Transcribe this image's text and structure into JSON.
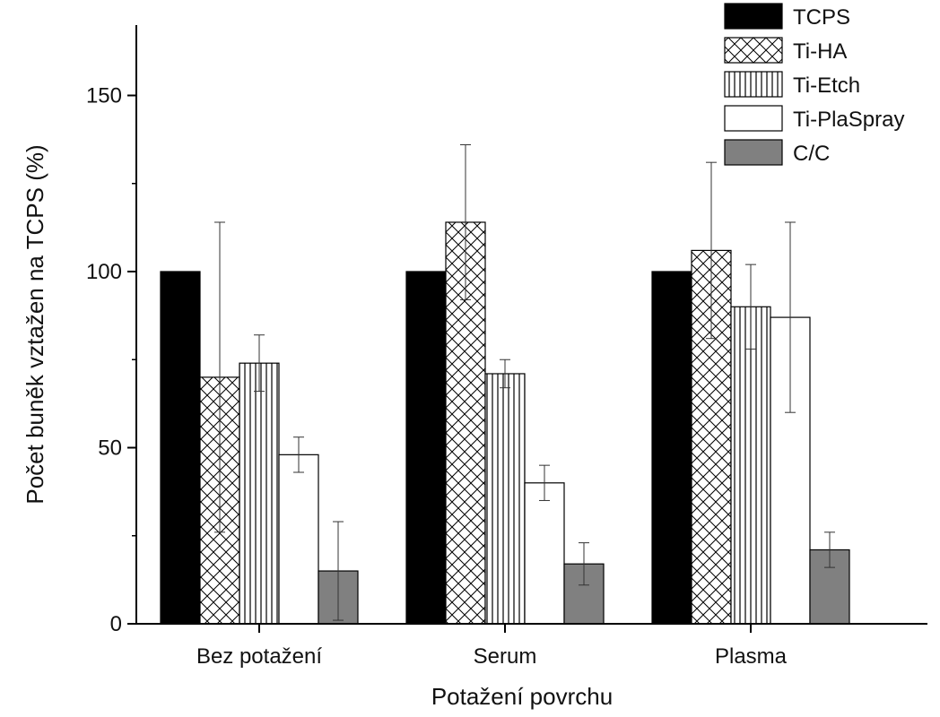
{
  "chart_data": {
    "type": "bar",
    "title": "",
    "xlabel": "Potažení povrchu",
    "ylabel": "Počet buněk vztažen na TCPS (%)",
    "ylim": [
      0,
      170
    ],
    "yticks": [
      0,
      50,
      100,
      150
    ],
    "ytick_labels": [
      "0",
      "50",
      "100",
      "150"
    ],
    "categories": [
      "Bez potažení",
      "Serum",
      "Plasma"
    ],
    "grid": false,
    "legend_position": "top-right",
    "series": [
      {
        "name": "TCPS",
        "fill": "solid",
        "color": "#000000",
        "values": [
          100,
          100,
          100
        ],
        "errors": [
          null,
          null,
          null
        ]
      },
      {
        "name": "Ti-HA",
        "fill": "crosshatch",
        "color": "#ffffff",
        "values": [
          70,
          114,
          106
        ],
        "errors": [
          44,
          22,
          25
        ]
      },
      {
        "name": "Ti-Etch",
        "fill": "vertical-lines",
        "color": "#ffffff",
        "values": [
          74,
          71,
          90
        ],
        "errors": [
          8,
          4,
          12
        ]
      },
      {
        "name": "Ti-PlaSpray",
        "fill": "empty",
        "color": "#ffffff",
        "values": [
          48,
          40,
          87
        ],
        "errors": [
          5,
          5,
          27
        ]
      },
      {
        "name": "C/C",
        "fill": "solid",
        "color": "#808080",
        "values": [
          15,
          17,
          21
        ],
        "errors": [
          14,
          6,
          5
        ]
      }
    ]
  }
}
